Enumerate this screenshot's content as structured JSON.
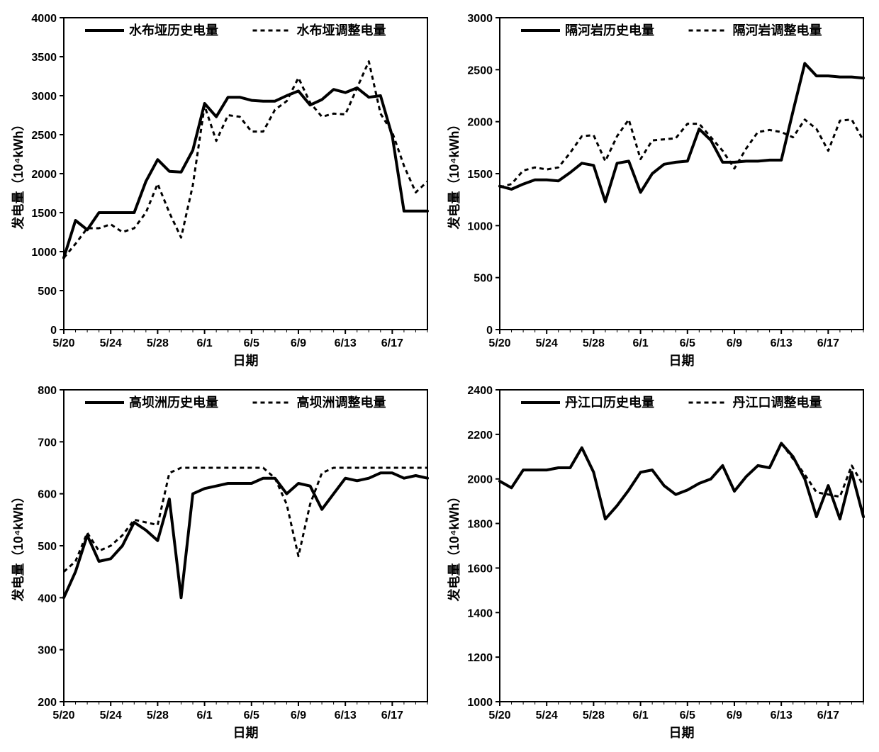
{
  "global": {
    "xlabel": "日期",
    "ylabel": "发电量（10⁴kWh）",
    "x_categories": [
      "5/20",
      "5/21",
      "5/22",
      "5/23",
      "5/24",
      "5/25",
      "5/26",
      "5/27",
      "5/28",
      "5/29",
      "5/30",
      "5/31",
      "6/1",
      "6/2",
      "6/3",
      "6/4",
      "6/5",
      "6/6",
      "6/7",
      "6/8",
      "6/9",
      "6/10",
      "6/11",
      "6/12",
      "6/13",
      "6/14",
      "6/15",
      "6/16",
      "6/17",
      "6/18",
      "6/19",
      "6/20"
    ],
    "x_tick_labels": [
      "5/20",
      "5/24",
      "5/28",
      "6/1",
      "6/5",
      "6/9",
      "6/13",
      "6/17"
    ],
    "x_tick_indices": [
      0,
      4,
      8,
      12,
      16,
      20,
      24,
      28
    ],
    "colors": {
      "axis": "#000000",
      "line_solid": "#000000",
      "line_dashed": "#000000",
      "background": "#ffffff"
    },
    "line_solid_width": 4,
    "line_dashed_width": 3,
    "dash_pattern": "6,5"
  },
  "charts": [
    {
      "id": "shuibuya",
      "legend_solid": "水布垭历史电量",
      "legend_dashed": "水布垭调整电量",
      "ylim": [
        0,
        4000
      ],
      "ytick_step": 500,
      "solid": [
        920,
        1400,
        1280,
        1500,
        1500,
        1500,
        1500,
        1900,
        2180,
        2030,
        2020,
        2300,
        2900,
        2730,
        2980,
        2980,
        2940,
        2930,
        2930,
        3000,
        3060,
        2880,
        2950,
        3080,
        3040,
        3100,
        2980,
        3000,
        2480,
        1520,
        1520,
        1520
      ],
      "dashed": [
        920,
        1100,
        1300,
        1300,
        1350,
        1250,
        1300,
        1500,
        1870,
        1500,
        1180,
        1850,
        2870,
        2420,
        2750,
        2730,
        2540,
        2540,
        2820,
        2930,
        3230,
        2910,
        2730,
        2770,
        2760,
        3100,
        3440,
        2770,
        2530,
        2100,
        1760,
        1900
      ]
    },
    {
      "id": "geheyan",
      "legend_solid": "隔河岩历史电量",
      "legend_dashed": "隔河岩调整电量",
      "ylim": [
        0,
        3000
      ],
      "ytick_step": 500,
      "solid": [
        1380,
        1350,
        1400,
        1440,
        1440,
        1430,
        1510,
        1600,
        1580,
        1230,
        1600,
        1620,
        1320,
        1500,
        1590,
        1610,
        1620,
        1930,
        1820,
        1610,
        1610,
        1620,
        1620,
        1630,
        1630,
        2100,
        2560,
        2440,
        2440,
        2430,
        2430,
        2420
      ],
      "dashed": [
        1370,
        1400,
        1530,
        1560,
        1540,
        1560,
        1700,
        1860,
        1870,
        1620,
        1860,
        2020,
        1640,
        1820,
        1830,
        1840,
        1980,
        1980,
        1850,
        1720,
        1550,
        1740,
        1900,
        1920,
        1900,
        1850,
        2020,
        1930,
        1720,
        2010,
        2020,
        1820
      ]
    },
    {
      "id": "gaobazhou",
      "legend_solid": "高坝洲历史电量",
      "legend_dashed": "高坝洲调整电量",
      "ylim": [
        200,
        800
      ],
      "ytick_step": 100,
      "solid": [
        400,
        450,
        520,
        470,
        475,
        500,
        545,
        530,
        510,
        590,
        400,
        600,
        610,
        615,
        620,
        620,
        620,
        630,
        630,
        600,
        620,
        615,
        570,
        600,
        630,
        625,
        630,
        640,
        640,
        630,
        635,
        630
      ],
      "dashed": [
        450,
        470,
        525,
        490,
        500,
        520,
        550,
        545,
        540,
        640,
        650,
        650,
        650,
        650,
        650,
        650,
        650,
        650,
        630,
        580,
        480,
        580,
        640,
        650,
        650,
        650,
        650,
        650,
        650,
        650,
        650,
        650
      ]
    },
    {
      "id": "danjiangkou",
      "legend_solid": "丹江口历史电量",
      "legend_dashed": "丹江口调整电量",
      "ylim": [
        1000,
        2400
      ],
      "ytick_step": 200,
      "solid": [
        1990,
        1960,
        2040,
        2040,
        2040,
        2050,
        2050,
        2140,
        2030,
        1820,
        1880,
        1950,
        2030,
        2040,
        1970,
        1930,
        1950,
        1980,
        2000,
        2060,
        1945,
        2010,
        2060,
        2050,
        2160,
        2100,
        2000,
        1830,
        1970,
        1820,
        2030,
        1830
      ],
      "dashed": [
        1990,
        1960,
        2040,
        2040,
        2040,
        2050,
        2050,
        2140,
        2030,
        1820,
        1880,
        1950,
        2030,
        2040,
        1970,
        1930,
        1950,
        1980,
        2000,
        2060,
        1945,
        2010,
        2060,
        2050,
        2160,
        2090,
        2020,
        1940,
        1930,
        1920,
        2060,
        1970
      ]
    }
  ]
}
